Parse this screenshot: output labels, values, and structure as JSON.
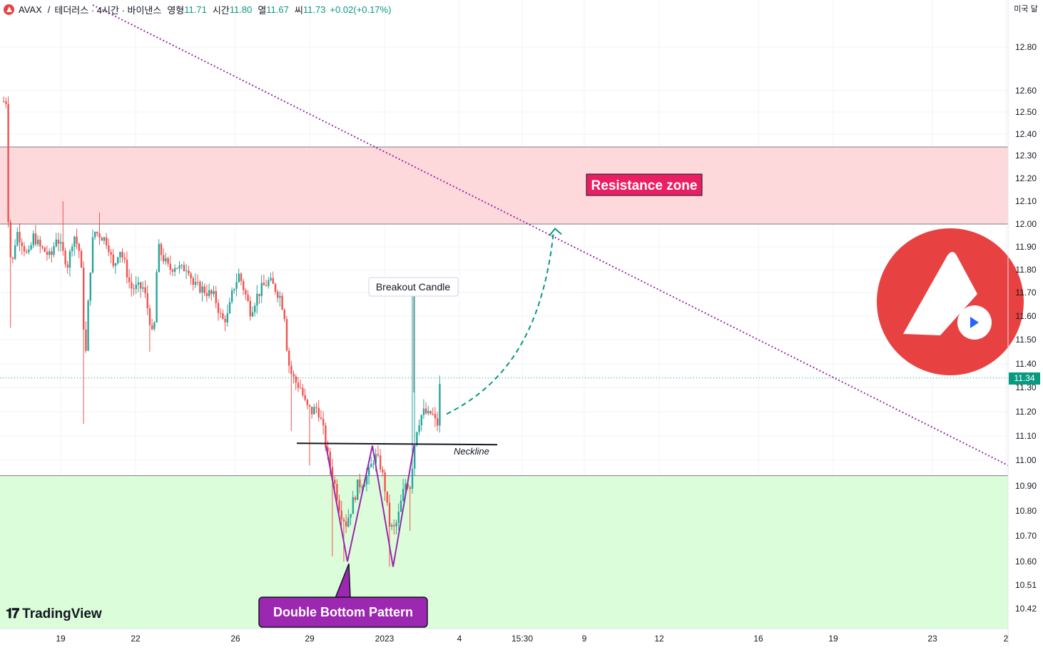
{
  "header": {
    "symbol": "AVAX",
    "separator": "/",
    "pair": "테더러스 · 4시간 · 바이낸스",
    "open_label": "영형",
    "open": "11.71",
    "high_label": "시간",
    "high": "11.80",
    "low_label": "열",
    "low": "11.67",
    "close_label": "씨",
    "close": "11.73",
    "change": "+0.02(+0.17%)"
  },
  "currency_label": "미국 달",
  "current_price": "11.34",
  "brand": "TradingView",
  "colors": {
    "up": "#26a69a",
    "down": "#ef5350",
    "resistance_fill": "#fdd9dc",
    "support_fill": "#dcfdd9",
    "trendline": "#9c27b0",
    "projection": "#089981",
    "avax_red": "#e84142",
    "resistance_label_bg": "#e91e63",
    "pattern_label_bg": "#9c27b0"
  },
  "chart_data": {
    "type": "candlestick",
    "timeframe": "4h",
    "y_axis_ticks": [
      "12.80",
      "12.60",
      "12.50",
      "12.40",
      "12.30",
      "12.20",
      "12.10",
      "12.00",
      "11.90",
      "11.80",
      "11.70",
      "11.60",
      "11.50",
      "11.40",
      "11.30",
      "11.20",
      "11.10",
      "11.00",
      "10.90",
      "10.80",
      "10.70",
      "10.60",
      "10.51",
      "10.42"
    ],
    "x_axis_ticks": [
      "19",
      "22",
      "26",
      "29",
      "2023",
      "4",
      "15:30",
      "9",
      "12",
      "16",
      "19",
      "23",
      "2"
    ],
    "y_range": [
      10.38,
      12.98
    ],
    "grid": true,
    "resistance_zone": {
      "low": 12.0,
      "high": 12.34,
      "label": "Resistance zone"
    },
    "support_zone": {
      "low": 10.38,
      "high": 10.94
    },
    "neckline": {
      "price": 11.07,
      "label": "Neckline"
    },
    "pattern": {
      "label": "Double Bottom Pattern",
      "first_low": 10.6,
      "middle_high": 11.06,
      "second_low": 10.58
    },
    "breakout_label": "Breakout Candle",
    "downtrend_line": {
      "start_price": 13.0,
      "end_price": 10.98
    },
    "projection_target": 11.98,
    "last_price": 11.34
  }
}
